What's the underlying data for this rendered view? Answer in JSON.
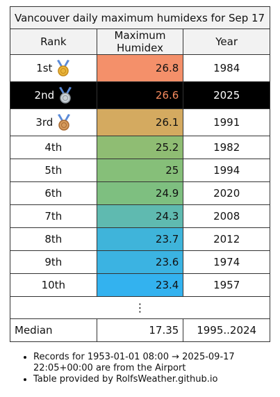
{
  "table": {
    "title": "Vancouver daily maximum humidexs for Sep 17",
    "headers": {
      "rank": "Rank",
      "value": "Maximum Humidex",
      "year": "Year"
    },
    "rows": [
      {
        "rank": "1st",
        "medal": "gold-medal",
        "value": "26.8",
        "year": "1984",
        "color": "#f4906a"
      },
      {
        "rank": "2nd",
        "medal": "silver-medal",
        "value": "26.6",
        "year": "2025",
        "color": "#000000",
        "highlight": true
      },
      {
        "rank": "3rd",
        "medal": "bronze-medal",
        "value": "26.1",
        "year": "1991",
        "color": "#d4aa60"
      },
      {
        "rank": "4th",
        "value": "25.2",
        "year": "1982",
        "color": "#8fbd73"
      },
      {
        "rank": "5th",
        "value": "25",
        "year": "1994",
        "color": "#86bf79"
      },
      {
        "rank": "6th",
        "value": "24.9",
        "year": "2020",
        "color": "#7ebf80"
      },
      {
        "rank": "7th",
        "value": "24.3",
        "year": "2008",
        "color": "#5fbab0"
      },
      {
        "rank": "8th",
        "value": "23.7",
        "year": "2012",
        "color": "#3fb4da"
      },
      {
        "rank": "9th",
        "value": "23.6",
        "year": "1974",
        "color": "#3bb3e2"
      },
      {
        "rank": "10th",
        "value": "23.4",
        "year": "1957",
        "color": "#33b2ef"
      }
    ],
    "ellipsis": "⋮",
    "median": {
      "label": "Median",
      "value": "17.35",
      "years": "1995..2024"
    }
  },
  "notes": [
    "Records for 1953-01-01 08:00 → 2025-09-17 22:05+00:00 are from the Airport",
    "Table provided by RolfsWeather.github.io"
  ]
}
